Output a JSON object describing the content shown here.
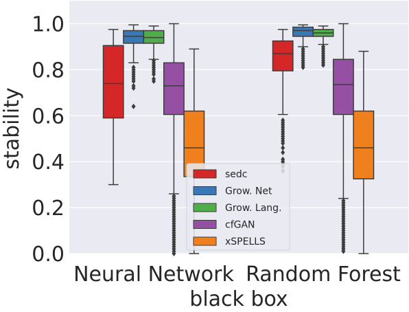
{
  "chart_data": {
    "type": "box",
    "xlabel": "black box",
    "ylabel": "stability",
    "ylim": [
      0.0,
      1.1
    ],
    "yticks": [
      "0.0",
      "0.2",
      "0.4",
      "0.6",
      "0.8",
      "1.0"
    ],
    "categories": [
      "Neural Network",
      "Random Forest"
    ],
    "grid": true,
    "legend_position": "lower-center",
    "series": [
      {
        "name": "sedc",
        "color": "#d62728",
        "boxes": [
          {
            "category": "Neural Network",
            "whisker_low": 0.3,
            "q1": 0.59,
            "median": 0.74,
            "q3": 0.905,
            "whisker_high": 0.975,
            "outliers": []
          },
          {
            "category": "Random Forest",
            "whisker_low": 0.605,
            "q1": 0.795,
            "median": 0.87,
            "q3": 0.925,
            "whisker_high": 0.975,
            "outliers": [
              0.58,
              0.57,
              0.56,
              0.55,
              0.54,
              0.53,
              0.52,
              0.51,
              0.5,
              0.49,
              0.48,
              0.46,
              0.44,
              0.41,
              0.4,
              0.39,
              0.38,
              0.36
            ]
          }
        ]
      },
      {
        "name": "Grow. Net",
        "color": "#3a78b5",
        "boxes": [
          {
            "category": "Neural Network",
            "whisker_low": 0.83,
            "q1": 0.915,
            "median": 0.945,
            "q3": 0.97,
            "whisker_high": 0.995,
            "outliers": [
              0.81,
              0.8,
              0.79,
              0.78,
              0.77,
              0.76,
              0.75,
              0.73,
              0.72,
              0.64
            ]
          },
          {
            "category": "Random Forest",
            "whisker_low": 0.9,
            "q1": 0.945,
            "median": 0.97,
            "q3": 0.985,
            "whisker_high": 0.995,
            "outliers": [
              0.89,
              0.88,
              0.87,
              0.86,
              0.85,
              0.84,
              0.83,
              0.82,
              0.81
            ]
          }
        ]
      },
      {
        "name": "Grow. Lang.",
        "color": "#4fae4a",
        "boxes": [
          {
            "category": "Neural Network",
            "whisker_low": 0.845,
            "q1": 0.915,
            "median": 0.94,
            "q3": 0.97,
            "whisker_high": 0.99,
            "outliers": [
              0.84,
              0.83,
              0.82,
              0.81,
              0.8,
              0.79,
              0.78,
              0.76,
              0.75
            ]
          },
          {
            "category": "Random Forest",
            "whisker_low": 0.91,
            "q1": 0.945,
            "median": 0.96,
            "q3": 0.975,
            "whisker_high": 0.99,
            "outliers": [
              0.9,
              0.89,
              0.88,
              0.87,
              0.86,
              0.85,
              0.84,
              0.83,
              0.82
            ]
          }
        ]
      },
      {
        "name": "cfGAN",
        "color": "#9550a3",
        "boxes": [
          {
            "category": "Neural Network",
            "whisker_low": 0.26,
            "q1": 0.605,
            "median": 0.73,
            "q3": 0.83,
            "whisker_high": 1.0,
            "outliers": [
              0.25,
              0.24,
              0.23,
              0.22,
              0.21,
              0.2,
              0.19,
              0.18,
              0.17,
              0.16,
              0.15,
              0.14,
              0.13,
              0.12,
              0.11,
              0.1,
              0.09,
              0.08,
              0.07,
              0.06,
              0.05,
              0.04,
              0.03,
              0.02,
              0.01,
              0.0
            ]
          },
          {
            "category": "Random Forest",
            "whisker_low": 0.24,
            "q1": 0.605,
            "median": 0.735,
            "q3": 0.845,
            "whisker_high": 1.0,
            "outliers": [
              0.23,
              0.22,
              0.21,
              0.2,
              0.19,
              0.18,
              0.17,
              0.16,
              0.15,
              0.14,
              0.13,
              0.12,
              0.11,
              0.1,
              0.09,
              0.08,
              0.07,
              0.06,
              0.05,
              0.04,
              0.03,
              0.02,
              0.01
            ]
          }
        ]
      },
      {
        "name": "xSPELLS",
        "color": "#f07f1e",
        "boxes": [
          {
            "category": "Neural Network",
            "whisker_low": 0.0,
            "q1": 0.335,
            "median": 0.46,
            "q3": 0.62,
            "whisker_high": 0.89,
            "outliers": []
          },
          {
            "category": "Random Forest",
            "whisker_low": 0.0,
            "q1": 0.325,
            "median": 0.46,
            "q3": 0.62,
            "whisker_high": 0.88,
            "outliers": []
          }
        ]
      }
    ]
  }
}
